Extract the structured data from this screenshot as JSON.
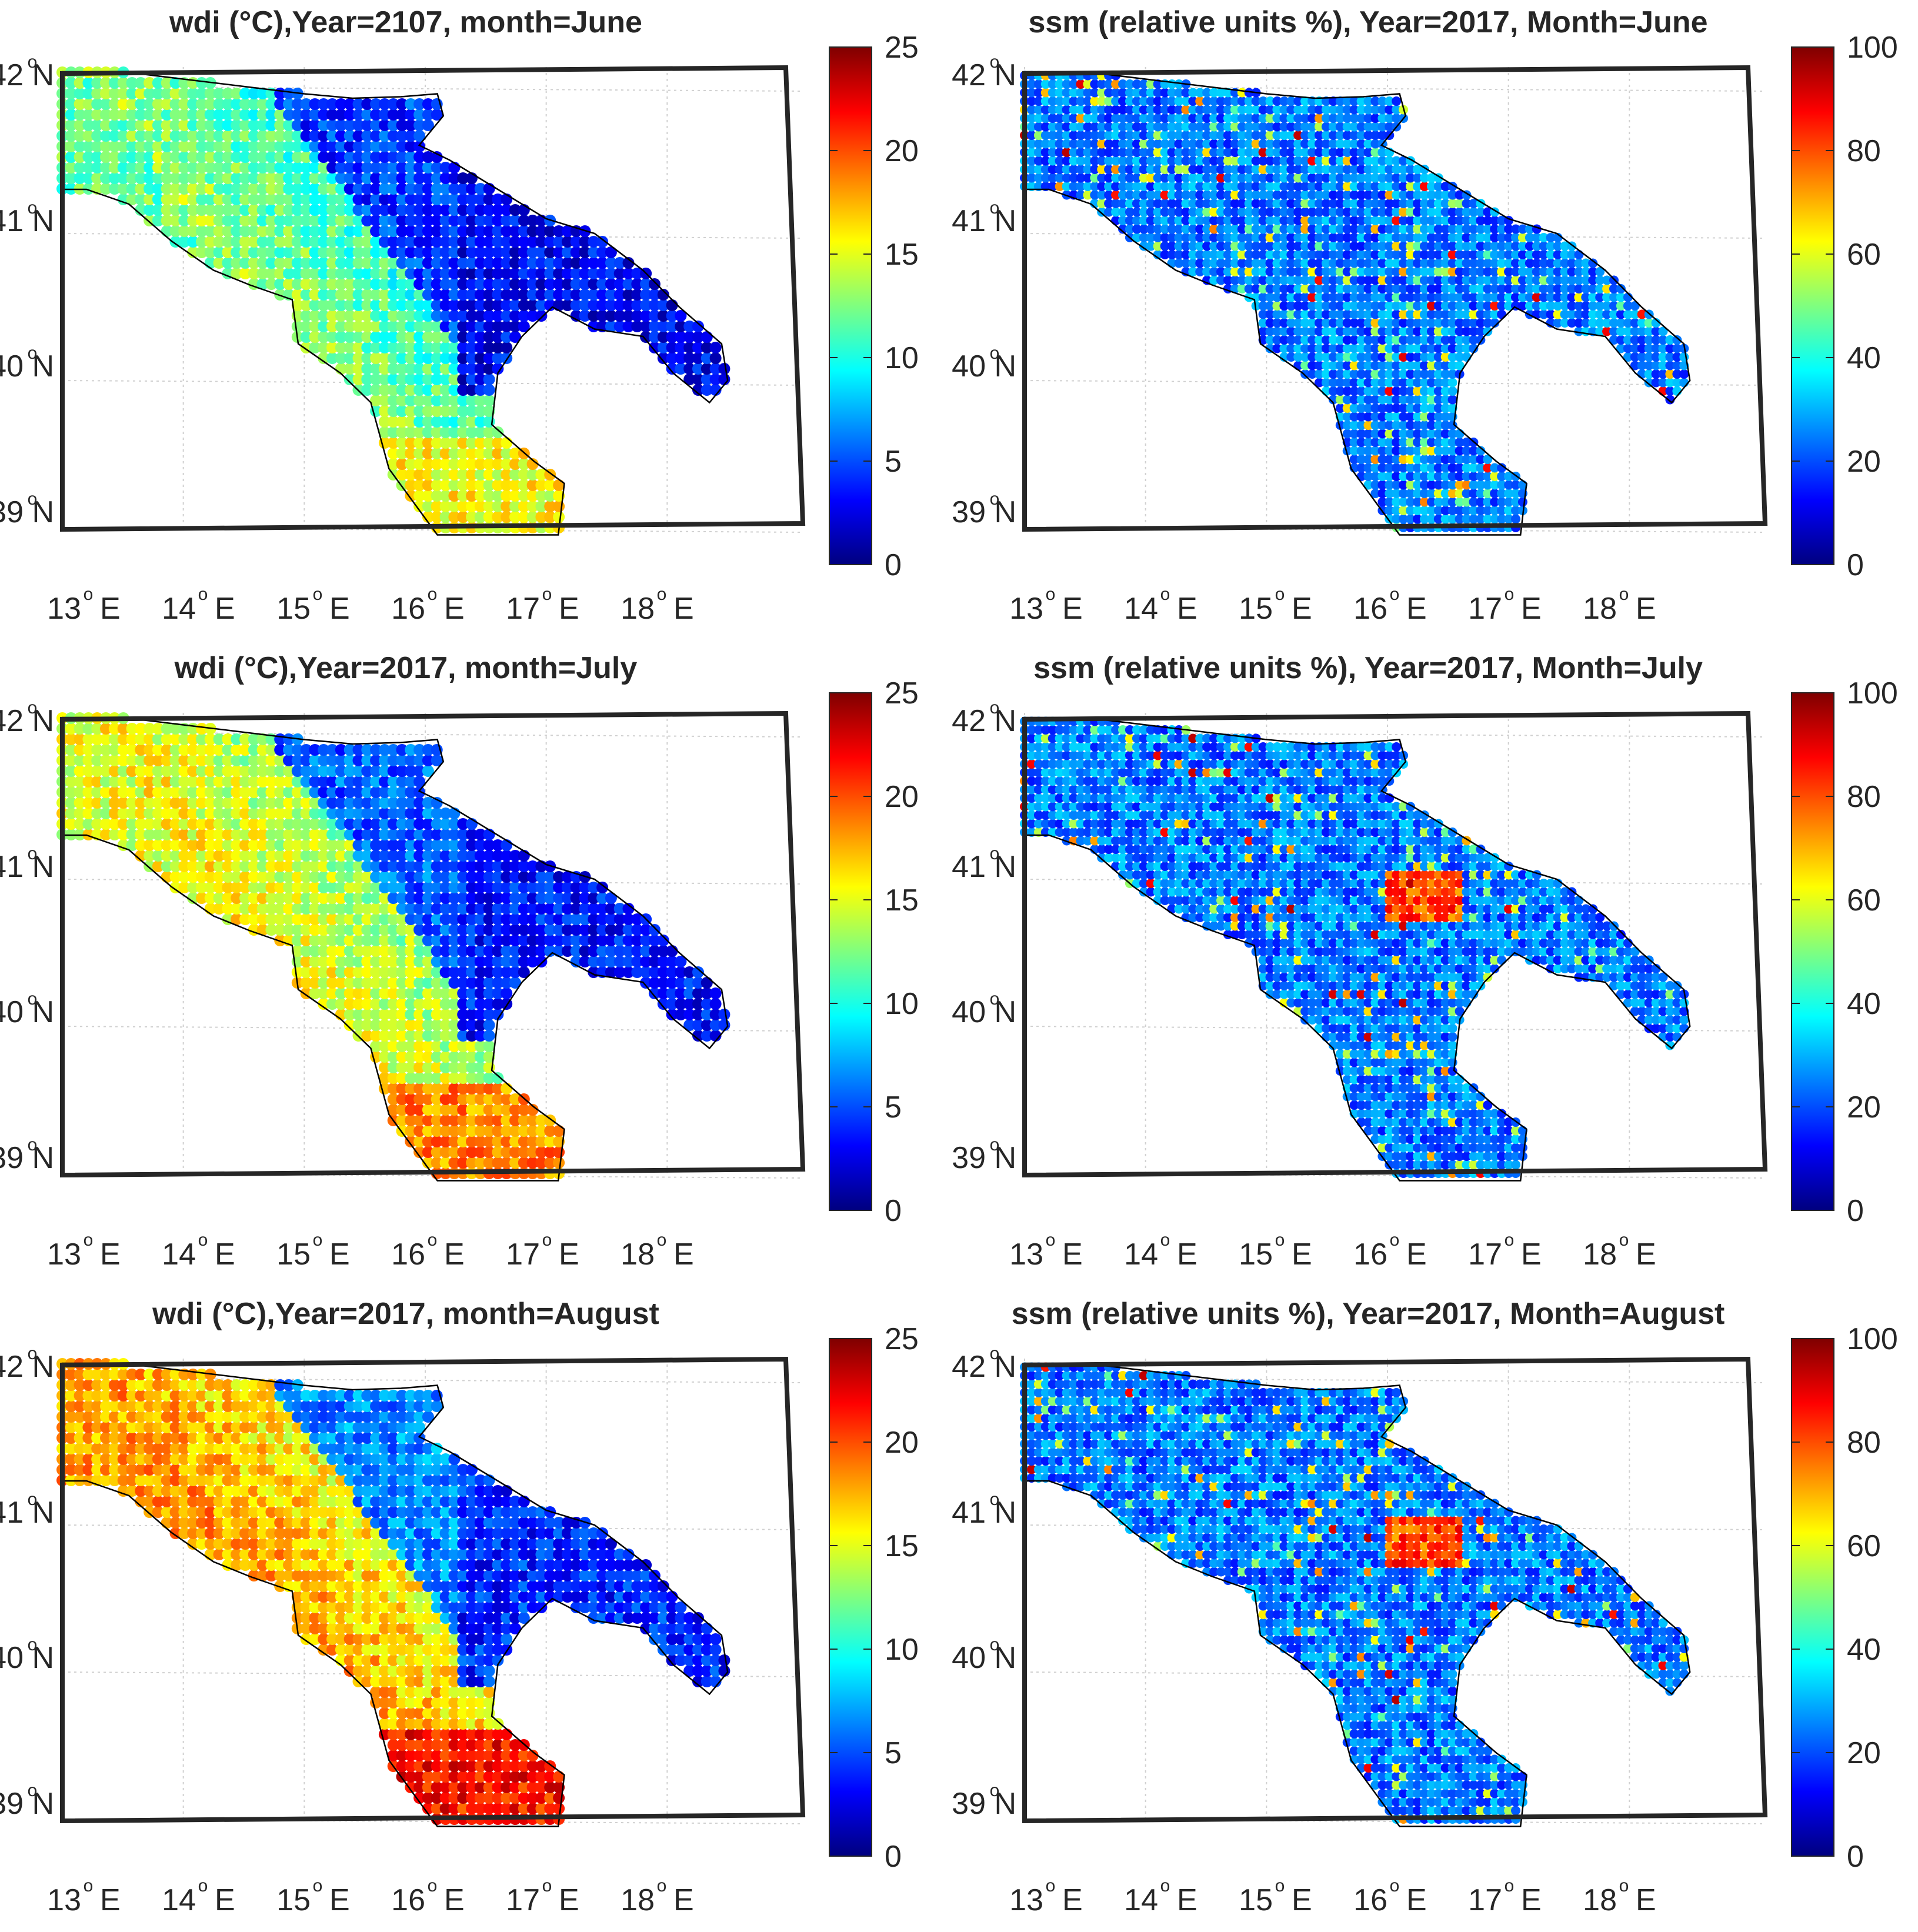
{
  "panels": [
    {
      "title": "wdi (°C),Year=2107, month=June",
      "variable": "wdi",
      "month": "June",
      "colorbar_ticks": [
        "0",
        "5",
        "10",
        "15",
        "20",
        "25"
      ],
      "clim": [
        0,
        25
      ]
    },
    {
      "title": "ssm (relative units %), Year=2017, Month=June",
      "variable": "ssm",
      "month": "June",
      "colorbar_ticks": [
        "0",
        "20",
        "40",
        "60",
        "80",
        "100"
      ],
      "clim": [
        0,
        100
      ]
    },
    {
      "title": "wdi (°C),Year=2017, month=July",
      "variable": "wdi",
      "month": "July",
      "colorbar_ticks": [
        "0",
        "5",
        "10",
        "15",
        "20",
        "25"
      ],
      "clim": [
        0,
        25
      ]
    },
    {
      "title": "ssm (relative units %), Year=2017, Month=July",
      "variable": "ssm",
      "month": "July",
      "colorbar_ticks": [
        "0",
        "20",
        "40",
        "60",
        "80",
        "100"
      ],
      "clim": [
        0,
        100
      ]
    },
    {
      "title": "wdi (°C),Year=2017, month=August",
      "variable": "wdi",
      "month": "August",
      "colorbar_ticks": [
        "0",
        "5",
        "10",
        "15",
        "20",
        "25"
      ],
      "clim": [
        0,
        25
      ]
    },
    {
      "title": "ssm (relative units %), Year=2017, Month=August",
      "variable": "ssm",
      "month": "August",
      "colorbar_ticks": [
        "0",
        "20",
        "40",
        "60",
        "80",
        "100"
      ],
      "clim": [
        0,
        100
      ]
    }
  ],
  "lat_ticks": [
    {
      "value": 42,
      "deg": "42",
      "dir": "N"
    },
    {
      "value": 41,
      "deg": "41",
      "dir": "N"
    },
    {
      "value": 40,
      "deg": "40",
      "dir": "N"
    },
    {
      "value": 39,
      "deg": "39",
      "dir": "N"
    }
  ],
  "lon_ticks": [
    {
      "value": 13,
      "deg": "13",
      "dir": "E"
    },
    {
      "value": 14,
      "deg": "14",
      "dir": "E"
    },
    {
      "value": 15,
      "deg": "15",
      "dir": "E"
    },
    {
      "value": 16,
      "deg": "16",
      "dir": "E"
    },
    {
      "value": 17,
      "deg": "17",
      "dir": "E"
    },
    {
      "value": 18,
      "deg": "18",
      "dir": "E"
    }
  ],
  "colormap": "jet",
  "colormap_stops": [
    "#00007f",
    "#0000ff",
    "#00ffff",
    "#7fff7f",
    "#ffff00",
    "#ff0000",
    "#7f0000"
  ],
  "chart_data": [
    {
      "type": "heatmap",
      "title": "wdi (°C),Year=2107, month=June",
      "region": "Southern Italy",
      "lon_range": [
        13,
        19
      ],
      "lat_range": [
        39,
        42.1
      ],
      "clim": [
        0,
        25
      ],
      "colorbar_ticks": [
        0,
        5,
        10,
        15,
        20,
        25
      ],
      "grid": true
    },
    {
      "type": "heatmap",
      "title": "ssm (relative units %), Year=2017, Month=June",
      "region": "Southern Italy",
      "lon_range": [
        13,
        19
      ],
      "lat_range": [
        39,
        42.1
      ],
      "clim": [
        0,
        100
      ],
      "colorbar_ticks": [
        0,
        20,
        40,
        60,
        80,
        100
      ],
      "grid": true
    },
    {
      "type": "heatmap",
      "title": "wdi (°C),Year=2017, month=July",
      "region": "Southern Italy",
      "lon_range": [
        13,
        19
      ],
      "lat_range": [
        39,
        42.1
      ],
      "clim": [
        0,
        25
      ],
      "colorbar_ticks": [
        0,
        5,
        10,
        15,
        20,
        25
      ],
      "grid": true
    },
    {
      "type": "heatmap",
      "title": "ssm (relative units %), Year=2017, Month=July",
      "region": "Southern Italy",
      "lon_range": [
        13,
        19
      ],
      "lat_range": [
        39,
        42.1
      ],
      "clim": [
        0,
        100
      ],
      "colorbar_ticks": [
        0,
        20,
        40,
        60,
        80,
        100
      ],
      "grid": true
    },
    {
      "type": "heatmap",
      "title": "wdi (°C),Year=2017, month=August",
      "region": "Southern Italy",
      "lon_range": [
        13,
        19
      ],
      "lat_range": [
        39,
        42.1
      ],
      "clim": [
        0,
        25
      ],
      "colorbar_ticks": [
        0,
        5,
        10,
        15,
        20,
        25
      ],
      "grid": true
    },
    {
      "type": "heatmap",
      "title": "ssm (relative units %), Year=2017, Month=August",
      "region": "Southern Italy",
      "lon_range": [
        13,
        19
      ],
      "lat_range": [
        39,
        42.1
      ],
      "clim": [
        0,
        100
      ],
      "colorbar_ticks": [
        0,
        20,
        40,
        60,
        80,
        100
      ],
      "grid": true
    }
  ]
}
